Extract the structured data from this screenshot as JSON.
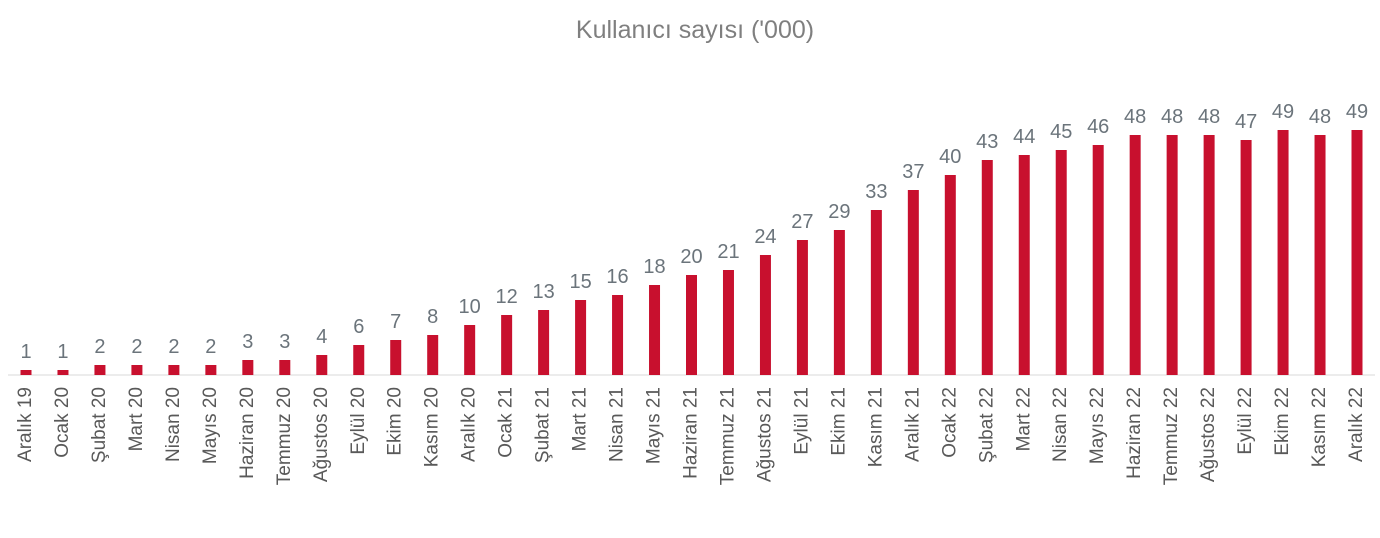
{
  "chart_data": {
    "type": "bar",
    "title": "Kullanıcı sayısı ('000)",
    "categories": [
      "Aralık 19",
      "Ocak 20",
      "Şubat 20",
      "Mart 20",
      "Nisan 20",
      "Mayıs 20",
      "Haziran 20",
      "Temmuz 20",
      "Ağustos 20",
      "Eylül 20",
      "Ekim 20",
      "Kasım 20",
      "Aralık 20",
      "Ocak 21",
      "Şubat 21",
      "Mart 21",
      "Nisan 21",
      "Mayıs 21",
      "Haziran 21",
      "Temmuz 21",
      "Ağustos 21",
      "Eylül 21",
      "Ekim 21",
      "Kasım 21",
      "Aralık 21",
      "Ocak 22",
      "Şubat 22",
      "Mart 22",
      "Nisan 22",
      "Mayıs 22",
      "Haziran 22",
      "Temmuz 22",
      "Ağustos 22",
      "Eylül 22",
      "Ekim 22",
      "Kasım 22",
      "Aralık 22"
    ],
    "values": [
      1,
      1,
      2,
      2,
      2,
      2,
      3,
      3,
      4,
      6,
      7,
      8,
      10,
      12,
      13,
      15,
      16,
      18,
      20,
      21,
      24,
      27,
      29,
      33,
      37,
      40,
      43,
      44,
      45,
      46,
      48,
      48,
      48,
      47,
      49,
      48,
      49
    ],
    "color": "#c8102e"
  }
}
